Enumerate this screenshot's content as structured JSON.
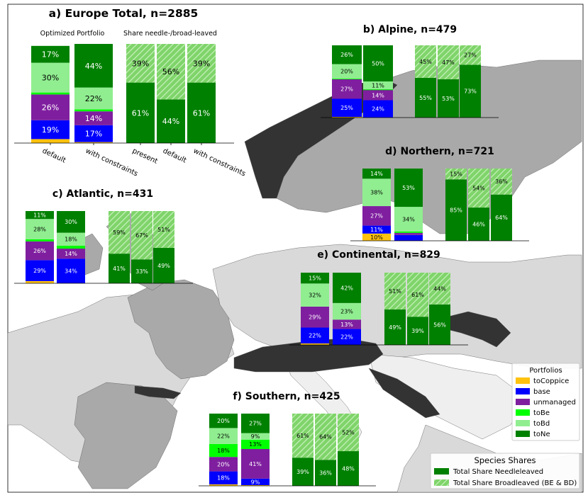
{
  "colors": {
    "toCoppice": "#ffc20e",
    "base": "#0000ff",
    "unmanaged": "#7f1f9f",
    "toBe": "#00ff00",
    "toBd": "#90ee90",
    "toNe": "#008000",
    "hatch_bg": "#7fd46a",
    "hatch_line": "#c9f2bf",
    "map_dark": "#333333",
    "map_mid": "#a9a9a9",
    "map_light": "#d9d9d9",
    "map_lighter": "#efefef"
  },
  "portfolio_legend": {
    "title": "Portfolios",
    "items": [
      "toCoppice",
      "base",
      "unmanaged",
      "toBe",
      "toBd",
      "toNe"
    ]
  },
  "species_legend": {
    "title": "Species Shares",
    "items": [
      "Total Share Needleleaved",
      "Total Share Broadleaved (BE & BD)"
    ]
  },
  "chart_data": [
    {
      "panel": "a",
      "title": "a) Europe Total, n=2885",
      "type": "bar",
      "stacked": true,
      "subtitles": [
        "Optimized Portfolio",
        "Share needle-/broad-leaved"
      ],
      "categories": [
        "default",
        "with constraints",
        "present",
        "default",
        "with constraints"
      ],
      "portfolio_bars": [
        {
          "toCoppice": 4,
          "base": 19,
          "unmanaged": 26,
          "toBe": 2,
          "toBd": 30,
          "toNe": 17
        },
        {
          "toCoppice": 1,
          "base": 17,
          "unmanaged": 14,
          "toBe": 2,
          "toBd": 22,
          "toNe": 44
        }
      ],
      "species_bars": [
        {
          "needle": 61,
          "broad": 39
        },
        {
          "needle": 44,
          "broad": 56
        },
        {
          "needle": 61,
          "broad": 39
        }
      ],
      "labels": {
        "portfolio": [
          {
            "toCoppice": "",
            "base": "19%",
            "unmanaged": "26%",
            "toBe": "",
            "toBd": "30%",
            "toNe": "17%"
          },
          {
            "toCoppice": "",
            "base": "17%",
            "unmanaged": "14%",
            "toBe": "",
            "toBd": "22%",
            "toNe": "44%"
          }
        ],
        "species": [
          {
            "needle": "61%",
            "broad": "39%"
          },
          {
            "needle": "44%",
            "broad": "56%"
          },
          {
            "needle": "61%",
            "broad": "39%"
          }
        ]
      }
    },
    {
      "panel": "b",
      "title": "b) Alpine, n=479",
      "type": "bar",
      "stacked": true,
      "portfolio_bars": [
        {
          "toCoppice": 1,
          "base": 25,
          "unmanaged": 27,
          "toBe": 1,
          "toBd": 20,
          "toNe": 26
        },
        {
          "toCoppice": 0,
          "base": 24,
          "unmanaged": 14,
          "toBe": 1,
          "toBd": 11,
          "toNe": 50
        }
      ],
      "species_bars": [
        {
          "needle": 55,
          "broad": 45
        },
        {
          "needle": 53,
          "broad": 47
        },
        {
          "needle": 73,
          "broad": 27
        }
      ],
      "labels": {
        "portfolio": [
          {
            "toCoppice": "",
            "base": "25%",
            "unmanaged": "27%",
            "toBe": "",
            "toBd": "20%",
            "toNe": "26%"
          },
          {
            "toCoppice": "",
            "base": "24%",
            "unmanaged": "14%",
            "toBe": "",
            "toBd": "11%",
            "toNe": "50%"
          }
        ],
        "species": [
          {
            "needle": "55%",
            "broad": "45%"
          },
          {
            "needle": "53%",
            "broad": "47%"
          },
          {
            "needle": "73%",
            "broad": "27%"
          }
        ]
      }
    },
    {
      "panel": "c",
      "title": "c) Atlantic, n=431",
      "type": "bar",
      "stacked": true,
      "portfolio_bars": [
        {
          "toCoppice": 3,
          "base": 29,
          "unmanaged": 26,
          "toBe": 3,
          "toBd": 28,
          "toNe": 11
        },
        {
          "toCoppice": 0,
          "base": 34,
          "unmanaged": 14,
          "toBe": 4,
          "toBd": 18,
          "toNe": 30
        }
      ],
      "species_bars": [
        {
          "needle": 41,
          "broad": 59
        },
        {
          "needle": 33,
          "broad": 67
        },
        {
          "needle": 49,
          "broad": 51
        }
      ],
      "labels": {
        "portfolio": [
          {
            "toCoppice": "",
            "base": "29%",
            "unmanaged": "26%",
            "toBe": "",
            "toBd": "28%",
            "toNe": "11%"
          },
          {
            "toCoppice": "",
            "base": "34%",
            "unmanaged": "14%",
            "toBe": "",
            "toBd": "18%",
            "toNe": "30%"
          }
        ],
        "species": [
          {
            "needle": "41%",
            "broad": "59%"
          },
          {
            "needle": "33%",
            "broad": "67%"
          },
          {
            "needle": "49%",
            "broad": "51%"
          }
        ]
      }
    },
    {
      "panel": "d",
      "title": "d) Northern, n=721",
      "type": "bar",
      "stacked": true,
      "portfolio_bars": [
        {
          "toCoppice": 10,
          "base": 11,
          "unmanaged": 27,
          "toBe": 0,
          "toBd": 38,
          "toNe": 14
        },
        {
          "toCoppice": 0,
          "base": 8,
          "unmanaged": 3,
          "toBe": 2,
          "toBd": 34,
          "toNe": 53
        }
      ],
      "species_bars": [
        {
          "needle": 85,
          "broad": 15
        },
        {
          "needle": 46,
          "broad": 54
        },
        {
          "needle": 64,
          "broad": 36
        }
      ],
      "labels": {
        "portfolio": [
          {
            "toCoppice": "10%",
            "base": "11%",
            "unmanaged": "27%",
            "toBe": "",
            "toBd": "38%",
            "toNe": "14%"
          },
          {
            "toCoppice": "",
            "base": "",
            "unmanaged": "",
            "toBe": "",
            "toBd": "34%",
            "toNe": "53%"
          }
        ],
        "species": [
          {
            "needle": "85%",
            "broad": "15%"
          },
          {
            "needle": "46%",
            "broad": "54%"
          },
          {
            "needle": "64%",
            "broad": "36%"
          }
        ]
      }
    },
    {
      "panel": "e",
      "title": "e) Continental, n=829",
      "type": "bar",
      "stacked": true,
      "portfolio_bars": [
        {
          "toCoppice": 2,
          "base": 22,
          "unmanaged": 29,
          "toBe": 0,
          "toBd": 32,
          "toNe": 15
        },
        {
          "toCoppice": 0,
          "base": 22,
          "unmanaged": 13,
          "toBe": 0,
          "toBd": 23,
          "toNe": 42
        }
      ],
      "species_bars": [
        {
          "needle": 49,
          "broad": 51
        },
        {
          "needle": 39,
          "broad": 61
        },
        {
          "needle": 56,
          "broad": 44
        }
      ],
      "labels": {
        "portfolio": [
          {
            "toCoppice": "",
            "base": "22%",
            "unmanaged": "29%",
            "toBe": "",
            "toBd": "32%",
            "toNe": "15%"
          },
          {
            "toCoppice": "",
            "base": "22%",
            "unmanaged": "13%",
            "toBe": "",
            "toBd": "23%",
            "toNe": "42%"
          }
        ],
        "species": [
          {
            "needle": "49%",
            "broad": "51%"
          },
          {
            "needle": "39%",
            "broad": "61%"
          },
          {
            "needle": "56%",
            "broad": "44%"
          }
        ]
      }
    },
    {
      "panel": "f",
      "title": "f) Southern, n=425",
      "type": "bar",
      "stacked": true,
      "portfolio_bars": [
        {
          "toCoppice": 2,
          "base": 18,
          "unmanaged": 20,
          "toBe": 18,
          "toBd": 22,
          "toNe": 20
        },
        {
          "toCoppice": 1,
          "base": 9,
          "unmanaged": 41,
          "toBe": 13,
          "toBd": 9,
          "toNe": 27
        }
      ],
      "species_bars": [
        {
          "needle": 39,
          "broad": 61
        },
        {
          "needle": 36,
          "broad": 64
        },
        {
          "needle": 48,
          "broad": 52
        }
      ],
      "labels": {
        "portfolio": [
          {
            "toCoppice": "",
            "base": "18%",
            "unmanaged": "20%",
            "toBe": "18%",
            "toBd": "22%",
            "toNe": "20%"
          },
          {
            "toCoppice": "",
            "base": "9%",
            "unmanaged": "41%",
            "toBe": "13%",
            "toBd": "9%",
            "toNe": "27%"
          }
        ],
        "species": [
          {
            "needle": "39%",
            "broad": "61%"
          },
          {
            "needle": "36%",
            "broad": "64%"
          },
          {
            "needle": "48%",
            "broad": "52%"
          }
        ]
      }
    }
  ]
}
